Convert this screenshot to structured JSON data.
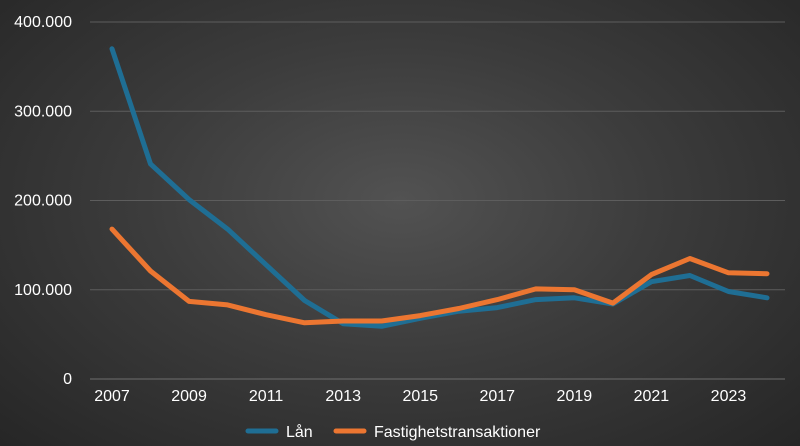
{
  "chart_data": {
    "type": "line",
    "title": "",
    "xlabel": "",
    "ylabel": "",
    "x": [
      2007,
      2008,
      2009,
      2010,
      2011,
      2012,
      2013,
      2014,
      2015,
      2016,
      2017,
      2018,
      2019,
      2020,
      2021,
      2022,
      2023,
      2024
    ],
    "x_tick_labels": [
      "2007",
      "2009",
      "2011",
      "2013",
      "2015",
      "2017",
      "2019",
      "2021",
      "2023"
    ],
    "y_tick_labels": [
      "0",
      "100.000",
      "200.000",
      "300.000",
      "400.000"
    ],
    "ylim": [
      0,
      400000
    ],
    "grid": "horizontal",
    "legend_position": "bottom",
    "series": [
      {
        "name": "Lån",
        "color": "#1f6e94",
        "values": [
          370000,
          241000,
          201000,
          168000,
          128000,
          88000,
          62000,
          59000,
          68000,
          76000,
          80000,
          89000,
          91000,
          84000,
          109000,
          116000,
          98000,
          91000
        ]
      },
      {
        "name": "Fastighetstransaktioner",
        "color": "#ec7631",
        "values": [
          168000,
          121000,
          87000,
          83000,
          72000,
          63000,
          65000,
          65000,
          71000,
          79000,
          89000,
          101000,
          100000,
          85000,
          117000,
          135000,
          119000,
          118000
        ]
      }
    ]
  }
}
